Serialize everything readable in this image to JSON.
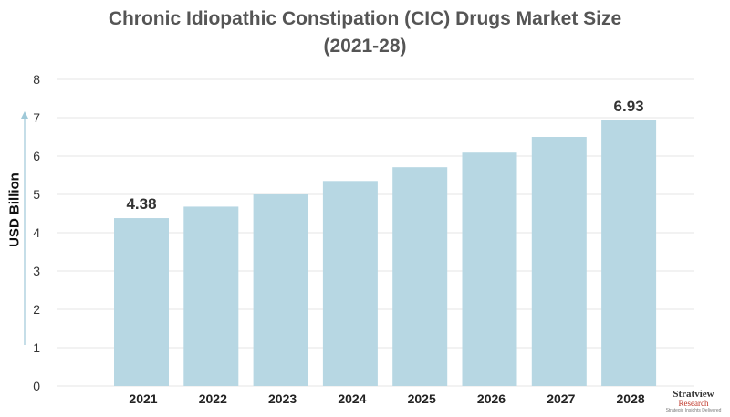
{
  "chart_data": {
    "type": "bar",
    "title_line1": "Chronic Idiopathic Constipation (CIC) Drugs Market Size",
    "title_line2": "(2021-28)",
    "ylabel": "USD Billion",
    "xlabel": "",
    "categories": [
      "2021",
      "2022",
      "2023",
      "2024",
      "2025",
      "2026",
      "2027",
      "2028"
    ],
    "values": [
      4.38,
      4.68,
      5.0,
      5.35,
      5.71,
      6.09,
      6.5,
      6.93
    ],
    "data_labels": [
      {
        "index": 0,
        "text": "4.38"
      },
      {
        "index": 7,
        "text": "6.93"
      }
    ],
    "ylim": [
      0,
      8
    ],
    "yticks": [
      0,
      1,
      2,
      3,
      4,
      5,
      6,
      7,
      8
    ],
    "grid": true,
    "colors": {
      "bar": "#b7d7e3",
      "grid": "#e6e6e6",
      "axis_arrow": "#9fc9d8"
    }
  },
  "logo": {
    "line1": "Stratview",
    "line2": "Research",
    "line3": "Strategic Insights Delivered"
  }
}
